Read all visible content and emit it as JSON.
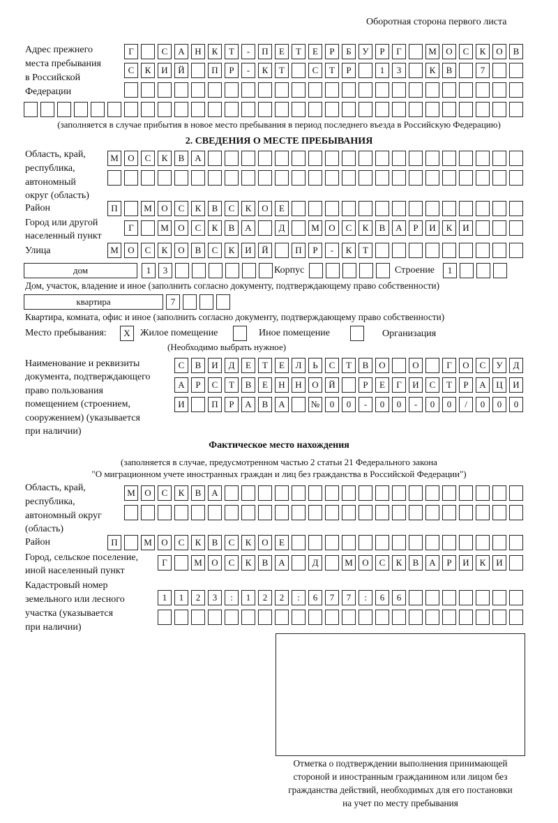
{
  "header": {
    "side_note": "Оборотная сторона первого листа"
  },
  "prev_address": {
    "label": [
      "Адрес прежнего",
      "места пребывания",
      "в Российской",
      "Федерации"
    ],
    "rows": [
      [
        "Г",
        "",
        "С",
        "А",
        "Н",
        "К",
        "Т",
        "-",
        "П",
        "Е",
        "Т",
        "Е",
        "Р",
        "Б",
        "У",
        "Р",
        "Г",
        "",
        "М",
        "О",
        "С",
        "К",
        "О",
        "В"
      ],
      [
        "С",
        "К",
        "И",
        "Й",
        "",
        "П",
        "Р",
        "-",
        "К",
        "Т",
        "",
        "С",
        "Т",
        "Р",
        "",
        "1",
        "3",
        "",
        "К",
        "В",
        "",
        "7",
        "",
        ""
      ],
      [
        "",
        "",
        "",
        "",
        "",
        "",
        "",
        "",
        "",
        "",
        "",
        "",
        "",
        "",
        "",
        "",
        "",
        "",
        "",
        "",
        "",
        "",
        "",
        ""
      ],
      [
        "",
        "",
        "",
        "",
        "",
        "",
        "",
        "",
        "",
        "",
        "",
        "",
        "",
        "",
        "",
        "",
        "",
        "",
        "",
        "",
        "",
        "",
        "",
        "",
        "",
        "",
        "",
        "",
        "",
        ""
      ]
    ],
    "note": "(заполняется в случае прибытия в новое место пребывания в период последнего въезда в Российскую Федерацию)"
  },
  "section2": {
    "title": "2. СВЕДЕНИЯ О МЕСТЕ ПРЕБЫВАНИЯ",
    "region_label": [
      "Область, край,",
      "республика,",
      "автономный",
      "округ (область)"
    ],
    "region_rows": [
      [
        "М",
        "О",
        "С",
        "К",
        "В",
        "А",
        "",
        "",
        "",
        "",
        "",
        "",
        "",
        "",
        "",
        "",
        "",
        "",
        "",
        "",
        "",
        "",
        "",
        "",
        ""
      ],
      [
        "",
        "",
        "",
        "",
        "",
        "",
        "",
        "",
        "",
        "",
        "",
        "",
        "",
        "",
        "",
        "",
        "",
        "",
        "",
        "",
        "",
        "",
        "",
        "",
        ""
      ]
    ],
    "district_label": "Район",
    "district": [
      "П",
      "",
      "М",
      "О",
      "С",
      "К",
      "В",
      "С",
      "К",
      "О",
      "Е",
      "",
      "",
      "",
      "",
      "",
      "",
      "",
      "",
      "",
      "",
      "",
      "",
      "",
      ""
    ],
    "city_label": [
      "Город или другой",
      "населенный пункт"
    ],
    "city": [
      "Г",
      "",
      "М",
      "О",
      "С",
      "К",
      "В",
      "А",
      "",
      "Д",
      "",
      "М",
      "О",
      "С",
      "К",
      "В",
      "А",
      "Р",
      "И",
      "К",
      "И",
      "",
      "",
      ""
    ],
    "street_label": "Улица",
    "street": [
      "М",
      "О",
      "С",
      "К",
      "О",
      "В",
      "С",
      "К",
      "И",
      "Й",
      "",
      "П",
      "Р",
      "-",
      "К",
      "Т",
      "",
      "",
      "",
      "",
      "",
      "",
      "",
      "",
      ""
    ],
    "house_type": "дом",
    "house": [
      "1",
      "3",
      "",
      "",
      "",
      "",
      "",
      ""
    ],
    "korpus_label": "Корпус",
    "korpus": [
      "",
      "",
      "",
      "",
      ""
    ],
    "building_label": "Строение",
    "building": [
      "1",
      "",
      "",
      ""
    ],
    "house_note": "Дом, участок, владение и иное (заполнить согласно документу, подтверждающему право собственности)",
    "apt_type": "квартира",
    "apt": [
      "7",
      "",
      "",
      ""
    ],
    "apt_note": "Квартира, комната, офис и иное (заполнить согласно документу, подтверждающему право собственности)",
    "place_label": "Место пребывания:",
    "place_options": [
      {
        "label": "Жилое помещение",
        "mark": "X",
        "checked": true
      },
      {
        "label": "Иное помещение",
        "mark": "",
        "checked": false
      },
      {
        "label": "Организация",
        "mark": "",
        "checked": false
      }
    ],
    "place_note": "(Необходимо выбрать нужное)",
    "doc_label": [
      "Наименование и реквизиты",
      "документа, подтверждающего",
      "право пользования",
      "помещением (строением,",
      "сооружением) (указывается",
      "при наличии)"
    ],
    "doc_rows": [
      [
        "С",
        "В",
        "И",
        "Д",
        "Е",
        "Т",
        "Е",
        "Л",
        "Ь",
        "С",
        "Т",
        "В",
        "О",
        "",
        "О",
        "",
        "Г",
        "О",
        "С",
        "У",
        "Д"
      ],
      [
        "А",
        "Р",
        "С",
        "Т",
        "В",
        "Е",
        "Н",
        "Н",
        "О",
        "Й",
        "",
        "Р",
        "Е",
        "Г",
        "И",
        "С",
        "Т",
        "Р",
        "А",
        "Ц",
        "И"
      ],
      [
        "И",
        "",
        "П",
        "Р",
        "А",
        "В",
        "А",
        "",
        "№",
        "0",
        "0",
        "-",
        "0",
        "0",
        "-",
        "0",
        "0",
        "/",
        "0",
        "0",
        "0"
      ]
    ]
  },
  "actual": {
    "title": "Фактическое место нахождения",
    "note": [
      "(заполняется в случае, предусмотренном частью 2 статьи 21 Федерального закона",
      "\"О миграционном учете иностранных граждан и лиц без гражданства в Российской Федерации\")"
    ],
    "region_label": [
      "Область, край,",
      "республика,",
      "автономный округ",
      "(область)"
    ],
    "region_rows": [
      [
        "М",
        "О",
        "С",
        "К",
        "В",
        "А",
        "",
        "",
        "",
        "",
        "",
        "",
        "",
        "",
        "",
        "",
        "",
        "",
        "",
        "",
        "",
        "",
        "",
        ""
      ],
      [
        "",
        "",
        "",
        "",
        "",
        "",
        "",
        "",
        "",
        "",
        "",
        "",
        "",
        "",
        "",
        "",
        "",
        "",
        "",
        "",
        "",
        "",
        "",
        ""
      ]
    ],
    "district_label": "Район",
    "district": [
      "П",
      "",
      "М",
      "О",
      "С",
      "К",
      "В",
      "С",
      "К",
      "О",
      "Е",
      "",
      "",
      "",
      "",
      "",
      "",
      "",
      "",
      "",
      "",
      "",
      "",
      "",
      ""
    ],
    "city_label": [
      "Город, сельское поселение,",
      "иной населенный пункт"
    ],
    "city": [
      "Г",
      "",
      "М",
      "О",
      "С",
      "К",
      "В",
      "А",
      "",
      "Д",
      "",
      "М",
      "О",
      "С",
      "К",
      "В",
      "А",
      "Р",
      "И",
      "К",
      "И",
      ""
    ],
    "cadastral_label": [
      "Кадастровый номер",
      "земельного или лесного",
      "участка (указывается",
      "при наличии)"
    ],
    "cadastral_rows": [
      [
        "1",
        "1",
        "2",
        "3",
        ":",
        "1",
        "2",
        "2",
        ":",
        "6",
        "7",
        "7",
        ":",
        "6",
        "6",
        "",
        "",
        "",
        "",
        "",
        "",
        ""
      ],
      [
        "",
        "",
        "",
        "",
        "",
        "",
        "",
        "",
        "",
        "",
        "",
        "",
        "",
        "",
        "",
        "",
        "",
        "",
        "",
        "",
        "",
        ""
      ]
    ]
  },
  "stamp": {
    "caption": [
      "Отметка о подтверждении выполнения принимающей",
      "стороной и иностранным гражданином или лицом без",
      "гражданства действий, необходимых для его постановки",
      "на учет по месту пребывания"
    ]
  }
}
